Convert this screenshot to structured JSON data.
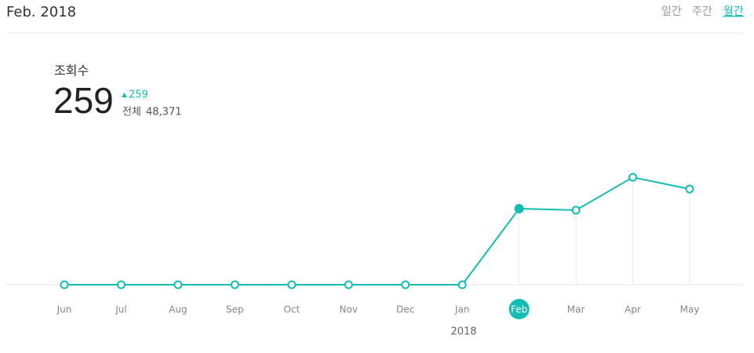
{
  "header": {
    "title": "Feb. 2018",
    "tabs": [
      "일간",
      "주간",
      "월간"
    ],
    "active_tab": 2
  },
  "stats": {
    "label": "조회수",
    "value": 259,
    "change": 259,
    "total_label": "전체",
    "total": "48,371"
  },
  "chart_data": {
    "type": "line",
    "categories": [
      "Jun",
      "Jul",
      "Aug",
      "Sep",
      "Oct",
      "Nov",
      "Dec",
      "Jan",
      "Feb",
      "Mar",
      "Apr",
      "May"
    ],
    "values": [
      0,
      0,
      0,
      0,
      0,
      0,
      0,
      0,
      259,
      254,
      366,
      326
    ],
    "color": "#12bdb3",
    "highlight_index": 8,
    "year_label": "2018"
  }
}
